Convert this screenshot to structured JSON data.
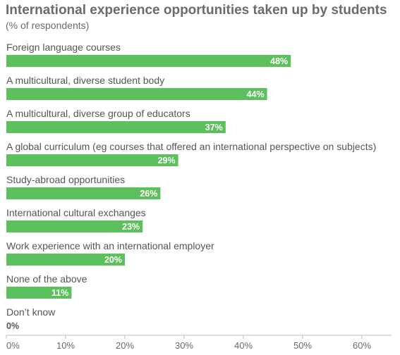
{
  "chart_data": {
    "type": "bar",
    "orientation": "horizontal",
    "title": "International experience opportunities taken up by students",
    "subtitle": "(% of respondents)",
    "categories": [
      "Foreign language courses",
      "A multicultural, diverse student body",
      "A multicultural, diverse group of educators",
      "A global curriculum (eg courses that offered an international perspective on subjects)",
      "Study-abroad opportunities",
      "International cultural exchanges",
      "Work experience with an international employer",
      "None of the above",
      "Don’t know"
    ],
    "values": [
      48,
      44,
      37,
      29,
      26,
      23,
      20,
      11,
      0
    ],
    "value_labels": [
      "48%",
      "44%",
      "37%",
      "29%",
      "26%",
      "23%",
      "20%",
      "11%",
      "0%"
    ],
    "xlim": [
      0,
      65
    ],
    "x_ticks": [
      0,
      10,
      20,
      30,
      40,
      50,
      60
    ],
    "x_tick_labels": [
      "0%",
      "10%",
      "20%",
      "30%",
      "40%",
      "50%",
      "60%"
    ],
    "bar_color": "#5cc05c",
    "grid": false,
    "legend": "none"
  }
}
